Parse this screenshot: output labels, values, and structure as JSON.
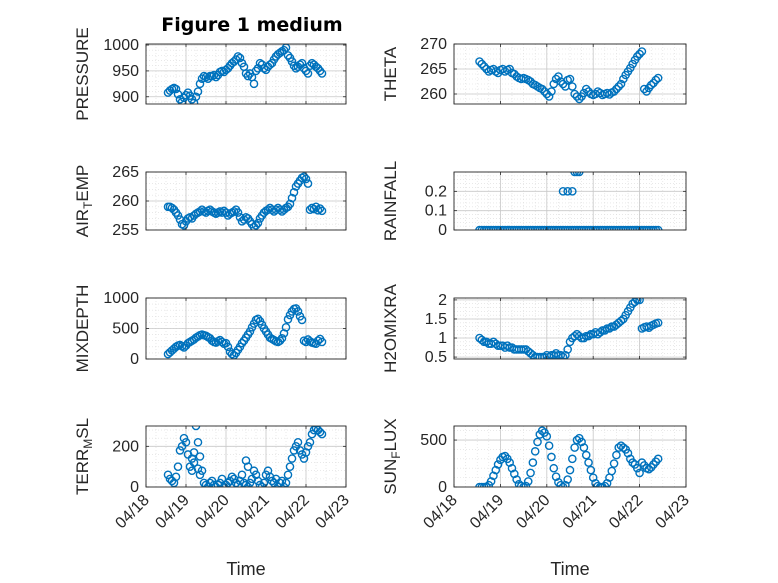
{
  "figure": {
    "title": "Figure 1 medium"
  },
  "chart_data": [
    {
      "type": "scatter",
      "ylabel": "PRESSURE",
      "ylim": [
        886,
        1002
      ],
      "yticks": [
        900,
        950,
        1000
      ],
      "xlim": [
        0,
        5
      ],
      "xticks_labels": [],
      "grid": true,
      "color": "#0072BD",
      "x": [
        0.55,
        0.6,
        0.65,
        0.7,
        0.75,
        0.8,
        0.85,
        0.9,
        0.95,
        1.0,
        1.05,
        1.1,
        1.15,
        1.2,
        1.25,
        1.3,
        1.35,
        1.4,
        1.45,
        1.5,
        1.55,
        1.6,
        1.65,
        1.7,
        1.75,
        1.8,
        1.85,
        1.9,
        1.95,
        2.0,
        2.05,
        2.1,
        2.15,
        2.2,
        2.25,
        2.3,
        2.35,
        2.4,
        2.45,
        2.5,
        2.55,
        2.6,
        2.65,
        2.7,
        2.75,
        2.8,
        2.85,
        2.9,
        2.95,
        3.0,
        3.05,
        3.1,
        3.15,
        3.2,
        3.25,
        3.3,
        3.35,
        3.4,
        3.45,
        3.5,
        3.55,
        3.6,
        3.65,
        3.7,
        3.75,
        3.8,
        3.85,
        3.9,
        3.95,
        4.0,
        4.05,
        4.1,
        4.15,
        4.2,
        4.25,
        4.3,
        4.35,
        4.4
      ],
      "y": [
        908,
        912,
        915,
        917,
        915,
        905,
        895,
        890,
        898,
        903,
        908,
        902,
        895,
        888,
        900,
        910,
        925,
        935,
        940,
        938,
        935,
        940,
        940,
        942,
        938,
        942,
        948,
        950,
        948,
        952,
        955,
        960,
        965,
        968,
        972,
        978,
        975,
        965,
        958,
        945,
        940,
        945,
        938,
        925,
        950,
        955,
        965,
        962,
        955,
        952,
        958,
        962,
        965,
        972,
        978,
        982,
        985,
        988,
        990,
        995,
        980,
        975,
        968,
        960,
        955,
        958,
        962,
        965,
        955,
        950,
        945,
        960,
        965,
        962,
        958,
        955,
        950,
        945
      ]
    },
    {
      "type": "scatter",
      "ylabel": "THETA",
      "ylim": [
        258,
        270
      ],
      "yticks": [
        260,
        265,
        270
      ],
      "xlim": [
        0,
        5
      ],
      "xticks_labels": [],
      "grid": true,
      "color": "#0072BD",
      "x": [
        0.55,
        0.6,
        0.65,
        0.7,
        0.75,
        0.8,
        0.85,
        0.9,
        0.95,
        1.0,
        1.05,
        1.1,
        1.15,
        1.2,
        1.25,
        1.3,
        1.35,
        1.4,
        1.45,
        1.5,
        1.55,
        1.6,
        1.65,
        1.7,
        1.75,
        1.8,
        1.85,
        1.9,
        1.95,
        2.0,
        2.05,
        2.1,
        2.15,
        2.2,
        2.25,
        2.3,
        2.35,
        2.4,
        2.45,
        2.5,
        2.55,
        2.6,
        2.65,
        2.7,
        2.75,
        2.8,
        2.85,
        2.9,
        2.95,
        3.0,
        3.05,
        3.1,
        3.15,
        3.2,
        3.25,
        3.3,
        3.35,
        3.4,
        3.45,
        3.5,
        3.55,
        3.6,
        3.65,
        3.7,
        3.75,
        3.8,
        3.85,
        3.9,
        3.95,
        4.0,
        4.05,
        4.1,
        4.15,
        4.2,
        4.25,
        4.3,
        4.35,
        4.4
      ],
      "y": [
        266.5,
        266,
        265.5,
        265,
        264.5,
        264.8,
        265,
        264.5,
        264.2,
        264.8,
        265,
        264.5,
        264.8,
        265,
        264.2,
        264,
        263.5,
        263.2,
        263,
        263.2,
        263,
        262.8,
        262.5,
        262,
        261.8,
        261.5,
        261.2,
        261,
        260.5,
        260,
        259.5,
        260.5,
        262,
        263,
        263.5,
        262.5,
        262,
        261.5,
        262.8,
        263,
        261.5,
        260,
        259.5,
        259,
        259.5,
        260.2,
        261,
        260.5,
        260,
        259.8,
        260,
        260.5,
        260.2,
        259.8,
        260,
        260.2,
        259.9,
        260.3,
        260.5,
        261,
        261.5,
        262,
        263,
        263.8,
        264.5,
        265.2,
        266,
        266.8,
        267.5,
        268,
        268.5,
        261,
        260.5,
        261.2,
        261.8,
        262.2,
        262.8,
        263.2
      ]
    },
    {
      "type": "scatter",
      "ylabel": "AIR_TEMP",
      "ylim": [
        255,
        265
      ],
      "yticks": [
        255,
        260,
        265
      ],
      "xlim": [
        0,
        5
      ],
      "xticks_labels": [],
      "grid": true,
      "color": "#0072BD",
      "x": [
        0.55,
        0.6,
        0.65,
        0.7,
        0.75,
        0.8,
        0.85,
        0.9,
        0.95,
        1.0,
        1.05,
        1.1,
        1.15,
        1.2,
        1.25,
        1.3,
        1.35,
        1.4,
        1.45,
        1.5,
        1.55,
        1.6,
        1.65,
        1.7,
        1.75,
        1.8,
        1.85,
        1.9,
        1.95,
        2.0,
        2.05,
        2.1,
        2.15,
        2.2,
        2.25,
        2.3,
        2.35,
        2.4,
        2.45,
        2.5,
        2.55,
        2.6,
        2.65,
        2.7,
        2.75,
        2.8,
        2.85,
        2.9,
        2.95,
        3.0,
        3.05,
        3.1,
        3.15,
        3.2,
        3.25,
        3.3,
        3.35,
        3.4,
        3.45,
        3.5,
        3.55,
        3.6,
        3.65,
        3.7,
        3.75,
        3.8,
        3.85,
        3.9,
        3.95,
        4.0,
        4.05,
        4.1,
        4.15,
        4.2,
        4.25,
        4.3,
        4.35,
        4.4
      ],
      "y": [
        259,
        259,
        258.8,
        258.5,
        258,
        257.5,
        256.8,
        256,
        255.8,
        256.5,
        257,
        257.2,
        257,
        257.5,
        257.8,
        258,
        258.2,
        258.5,
        258.2,
        258,
        258.3,
        258.5,
        258.2,
        258,
        257.8,
        258,
        258.2,
        258,
        258.3,
        258,
        257.5,
        257.8,
        258,
        258.2,
        258.5,
        258,
        257.2,
        256.5,
        256.8,
        257.2,
        257,
        256.5,
        256,
        255.5,
        255.8,
        256.2,
        257,
        257.5,
        258,
        258.3,
        258.5,
        258.8,
        258.5,
        258.2,
        258.5,
        258.8,
        258.5,
        258.2,
        258.5,
        258.8,
        259,
        259.5,
        260.5,
        261.5,
        262.5,
        263,
        263.5,
        264,
        264.2,
        263.8,
        263,
        258.5,
        258.8,
        258.6,
        259,
        258.4,
        258.7,
        258.3
      ]
    },
    {
      "type": "scatter",
      "ylabel": "RAINFALL",
      "ylim": [
        0,
        0.3
      ],
      "yticks": [
        0,
        0.1,
        0.2
      ],
      "xlim": [
        0,
        5
      ],
      "xticks_labels": [],
      "grid": true,
      "color": "#0072BD",
      "x": [
        0.55,
        0.6,
        0.65,
        0.7,
        0.75,
        0.8,
        0.85,
        0.9,
        0.95,
        1.0,
        1.05,
        1.1,
        1.15,
        1.2,
        1.25,
        1.3,
        1.35,
        1.4,
        1.45,
        1.5,
        1.55,
        1.6,
        1.65,
        1.7,
        1.75,
        1.8,
        1.85,
        1.9,
        1.95,
        2.0,
        2.05,
        2.1,
        2.15,
        2.2,
        2.25,
        2.3,
        2.35,
        2.4,
        2.45,
        2.5,
        2.55,
        2.6,
        2.65,
        2.7,
        2.75,
        2.8,
        2.85,
        2.9,
        2.95,
        3.0,
        3.05,
        3.1,
        3.15,
        3.2,
        3.25,
        3.3,
        3.35,
        3.4,
        3.45,
        3.5,
        3.55,
        3.6,
        3.65,
        3.7,
        3.75,
        3.8,
        3.85,
        3.9,
        3.95,
        4.0,
        4.05,
        4.1,
        4.15,
        4.2,
        4.25,
        4.3,
        4.35,
        4.4,
        2.35,
        2.45,
        2.55,
        2.6,
        2.65,
        2.7
      ],
      "y": [
        0,
        0,
        0,
        0,
        0,
        0,
        0,
        0,
        0,
        0,
        0,
        0,
        0,
        0,
        0,
        0,
        0,
        0,
        0,
        0,
        0,
        0,
        0,
        0,
        0,
        0,
        0,
        0,
        0,
        0,
        0,
        0,
        0,
        0,
        0,
        0,
        0,
        0,
        0,
        0,
        0,
        0,
        0,
        0,
        0,
        0,
        0,
        0,
        0,
        0,
        0,
        0,
        0,
        0,
        0,
        0,
        0,
        0,
        0,
        0,
        0,
        0,
        0,
        0,
        0,
        0,
        0,
        0,
        0,
        0,
        0,
        0,
        0,
        0,
        0,
        0,
        0,
        0,
        0.2,
        0.2,
        0.2,
        0.3,
        0.3,
        0.3
      ]
    },
    {
      "type": "scatter",
      "ylabel": "MIXDEPTH",
      "ylim": [
        0,
        1000
      ],
      "yticks": [
        0,
        500,
        1000
      ],
      "xlim": [
        0,
        5
      ],
      "xticks_labels": [],
      "grid": true,
      "color": "#0072BD",
      "x": [
        0.55,
        0.6,
        0.65,
        0.7,
        0.75,
        0.8,
        0.85,
        0.9,
        0.95,
        1.0,
        1.05,
        1.1,
        1.15,
        1.2,
        1.25,
        1.3,
        1.35,
        1.4,
        1.45,
        1.5,
        1.55,
        1.6,
        1.65,
        1.7,
        1.75,
        1.8,
        1.85,
        1.9,
        1.95,
        2.0,
        2.05,
        2.1,
        2.15,
        2.2,
        2.25,
        2.3,
        2.35,
        2.4,
        2.45,
        2.5,
        2.55,
        2.6,
        2.65,
        2.7,
        2.75,
        2.8,
        2.85,
        2.9,
        2.95,
        3.0,
        3.05,
        3.1,
        3.15,
        3.2,
        3.25,
        3.3,
        3.35,
        3.4,
        3.45,
        3.5,
        3.55,
        3.6,
        3.65,
        3.7,
        3.75,
        3.8,
        3.85,
        3.9,
        3.95,
        4.0,
        4.05,
        4.1,
        4.15,
        4.2,
        4.25,
        4.3,
        4.35,
        4.4
      ],
      "y": [
        80,
        110,
        140,
        170,
        200,
        220,
        230,
        210,
        190,
        220,
        260,
        280,
        300,
        320,
        350,
        370,
        390,
        400,
        390,
        380,
        360,
        340,
        300,
        280,
        270,
        290,
        310,
        280,
        250,
        260,
        200,
        120,
        80,
        60,
        100,
        150,
        200,
        260,
        300,
        350,
        400,
        450,
        520,
        580,
        640,
        660,
        620,
        560,
        500,
        450,
        400,
        350,
        330,
        310,
        290,
        280,
        300,
        340,
        420,
        520,
        650,
        720,
        780,
        820,
        830,
        780,
        700,
        640,
        300,
        280,
        320,
        290,
        270,
        260,
        250,
        300,
        330,
        280
      ]
    },
    {
      "type": "scatter",
      "ylabel": "H2OMIXRA",
      "ylim": [
        0.45,
        2.05
      ],
      "yticks": [
        0.5,
        1,
        1.5,
        2
      ],
      "xlim": [
        0,
        5
      ],
      "xticks_labels": [],
      "grid": true,
      "color": "#0072BD",
      "x": [
        0.55,
        0.6,
        0.65,
        0.7,
        0.75,
        0.8,
        0.85,
        0.9,
        0.95,
        1.0,
        1.05,
        1.1,
        1.15,
        1.2,
        1.25,
        1.3,
        1.35,
        1.4,
        1.45,
        1.5,
        1.55,
        1.6,
        1.65,
        1.7,
        1.75,
        1.8,
        1.85,
        1.9,
        1.95,
        2.0,
        2.05,
        2.1,
        2.15,
        2.2,
        2.25,
        2.3,
        2.35,
        2.4,
        2.45,
        2.5,
        2.55,
        2.6,
        2.65,
        2.7,
        2.75,
        2.8,
        2.85,
        2.9,
        2.95,
        3.0,
        3.05,
        3.1,
        3.15,
        3.2,
        3.25,
        3.3,
        3.35,
        3.4,
        3.45,
        3.5,
        3.55,
        3.6,
        3.65,
        3.7,
        3.75,
        3.8,
        3.85,
        3.9,
        3.95,
        4.0,
        4.05,
        4.1,
        4.15,
        4.2,
        4.25,
        4.3,
        4.35,
        4.4
      ],
      "y": [
        1.0,
        0.95,
        0.9,
        0.9,
        0.85,
        0.85,
        0.9,
        0.85,
        0.8,
        0.8,
        0.8,
        0.75,
        0.8,
        0.75,
        0.75,
        0.7,
        0.7,
        0.7,
        0.7,
        0.7,
        0.7,
        0.65,
        0.6,
        0.55,
        0.5,
        0.5,
        0.5,
        0.5,
        0.5,
        0.55,
        0.5,
        0.55,
        0.55,
        0.6,
        0.55,
        0.55,
        0.5,
        0.55,
        0.7,
        0.9,
        1.0,
        1.05,
        1.1,
        1.05,
        1.0,
        1.0,
        1.05,
        1.05,
        1.1,
        1.1,
        1.15,
        1.1,
        1.15,
        1.2,
        1.2,
        1.25,
        1.25,
        1.3,
        1.3,
        1.35,
        1.4,
        1.45,
        1.5,
        1.6,
        1.7,
        1.8,
        1.9,
        1.95,
        2.0,
        2.0,
        1.25,
        1.28,
        1.3,
        1.27,
        1.32,
        1.35,
        1.38,
        1.4
      ]
    },
    {
      "type": "scatter",
      "ylabel": "TERR_MSL",
      "ylim": [
        0,
        300
      ],
      "yticks": [
        0,
        200
      ],
      "xlim": [
        0,
        5
      ],
      "xticks_labels": [
        "04/18",
        "04/19",
        "04/20",
        "04/21",
        "04/22",
        "04/23"
      ],
      "xlabel": "Time",
      "grid": true,
      "color": "#0072BD",
      "x": [
        0.55,
        0.6,
        0.65,
        0.7,
        0.75,
        0.8,
        0.85,
        0.9,
        0.95,
        1.0,
        1.05,
        1.1,
        1.15,
        1.2,
        1.25,
        1.3,
        1.35,
        1.4,
        1.45,
        1.5,
        1.55,
        1.6,
        1.65,
        1.7,
        1.75,
        1.8,
        1.85,
        1.9,
        1.95,
        2.0,
        2.05,
        2.1,
        2.15,
        2.2,
        2.25,
        2.3,
        2.35,
        2.4,
        2.45,
        2.5,
        2.55,
        2.6,
        2.65,
        2.7,
        2.75,
        2.8,
        2.85,
        2.9,
        2.95,
        3.0,
        3.05,
        3.1,
        3.15,
        3.2,
        3.25,
        3.3,
        3.35,
        3.4,
        3.45,
        3.5,
        3.55,
        3.6,
        3.65,
        3.7,
        3.75,
        3.8,
        3.85,
        3.9,
        3.95,
        4.0,
        4.05,
        4.1,
        4.15,
        4.2,
        4.25,
        4.3,
        4.35,
        4.4,
        1.15,
        1.2,
        1.3,
        1.35,
        2.5,
        2.55
      ],
      "y": [
        60,
        40,
        30,
        20,
        50,
        100,
        180,
        200,
        240,
        220,
        160,
        100,
        80,
        120,
        300,
        220,
        150,
        80,
        20,
        10,
        0,
        20,
        30,
        10,
        0,
        10,
        20,
        40,
        0,
        10,
        20,
        30,
        50,
        40,
        20,
        10,
        30,
        60,
        20,
        10,
        0,
        20,
        40,
        80,
        60,
        30,
        10,
        0,
        20,
        60,
        80,
        50,
        30,
        20,
        40,
        0,
        20,
        30,
        0,
        20,
        60,
        100,
        140,
        180,
        200,
        220,
        180,
        160,
        140,
        170,
        200,
        220,
        260,
        280,
        290,
        280,
        270,
        260,
        140,
        170,
        90,
        60,
        130,
        100
      ]
    },
    {
      "type": "scatter",
      "ylabel": "SUN_FLUX",
      "ylim": [
        0,
        650
      ],
      "yticks": [
        0,
        500
      ],
      "xlim": [
        0,
        5
      ],
      "xticks_labels": [
        "04/18",
        "04/19",
        "04/20",
        "04/21",
        "04/22",
        "04/23"
      ],
      "xlabel": "Time",
      "grid": true,
      "color": "#0072BD",
      "x": [
        0.55,
        0.6,
        0.65,
        0.7,
        0.75,
        0.8,
        0.85,
        0.9,
        0.95,
        1.0,
        1.05,
        1.1,
        1.15,
        1.2,
        1.25,
        1.3,
        1.35,
        1.4,
        1.45,
        1.5,
        1.55,
        1.6,
        1.65,
        1.7,
        1.75,
        1.8,
        1.85,
        1.9,
        1.95,
        2.0,
        2.05,
        2.1,
        2.15,
        2.2,
        2.25,
        2.3,
        2.35,
        2.4,
        2.45,
        2.5,
        2.55,
        2.6,
        2.65,
        2.7,
        2.75,
        2.8,
        2.85,
        2.9,
        2.95,
        3.0,
        3.05,
        3.1,
        3.15,
        3.2,
        3.25,
        3.3,
        3.35,
        3.4,
        3.45,
        3.5,
        3.55,
        3.6,
        3.65,
        3.7,
        3.75,
        3.8,
        3.85,
        3.9,
        3.95,
        4.0,
        4.05,
        4.1,
        4.15,
        4.2,
        4.25,
        4.3,
        4.35,
        4.4
      ],
      "y": [
        0,
        0,
        0,
        0,
        20,
        60,
        120,
        180,
        240,
        290,
        320,
        330,
        300,
        260,
        200,
        140,
        80,
        30,
        10,
        0,
        10,
        60,
        150,
        260,
        380,
        480,
        560,
        600,
        580,
        540,
        440,
        320,
        200,
        110,
        50,
        20,
        0,
        20,
        80,
        180,
        300,
        420,
        500,
        520,
        480,
        420,
        340,
        260,
        180,
        100,
        40,
        10,
        0,
        0,
        10,
        40,
        100,
        170,
        250,
        340,
        420,
        440,
        420,
        400,
        360,
        300,
        260,
        240,
        200,
        150,
        260,
        230,
        200,
        190,
        210,
        240,
        270,
        300
      ]
    }
  ]
}
